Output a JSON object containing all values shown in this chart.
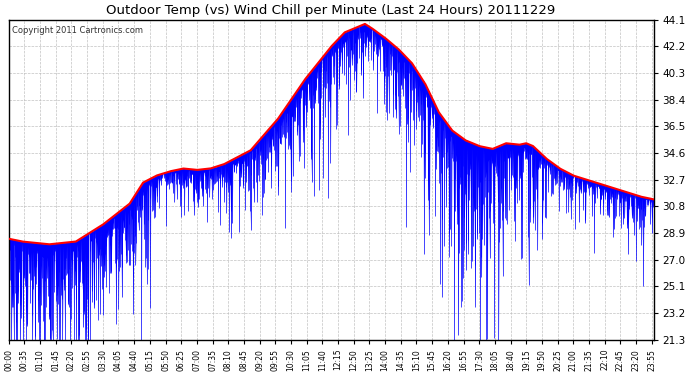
{
  "title": "Outdoor Temp (vs) Wind Chill per Minute (Last 24 Hours) 20111229",
  "copyright": "Copyright 2011 Cartronics.com",
  "ymin": 21.3,
  "ymax": 44.1,
  "yticks": [
    44.1,
    42.2,
    40.3,
    38.4,
    36.5,
    34.6,
    32.7,
    30.8,
    28.9,
    27.0,
    25.1,
    23.2,
    21.3
  ],
  "background_color": "#ffffff",
  "plot_bg_color": "#ffffff",
  "grid_color": "#bbbbbb",
  "title_color": "#000000",
  "blue_color": "#0000ff",
  "red_color": "#ff0000",
  "xtick_interval": 35,
  "total_minutes": 1440
}
